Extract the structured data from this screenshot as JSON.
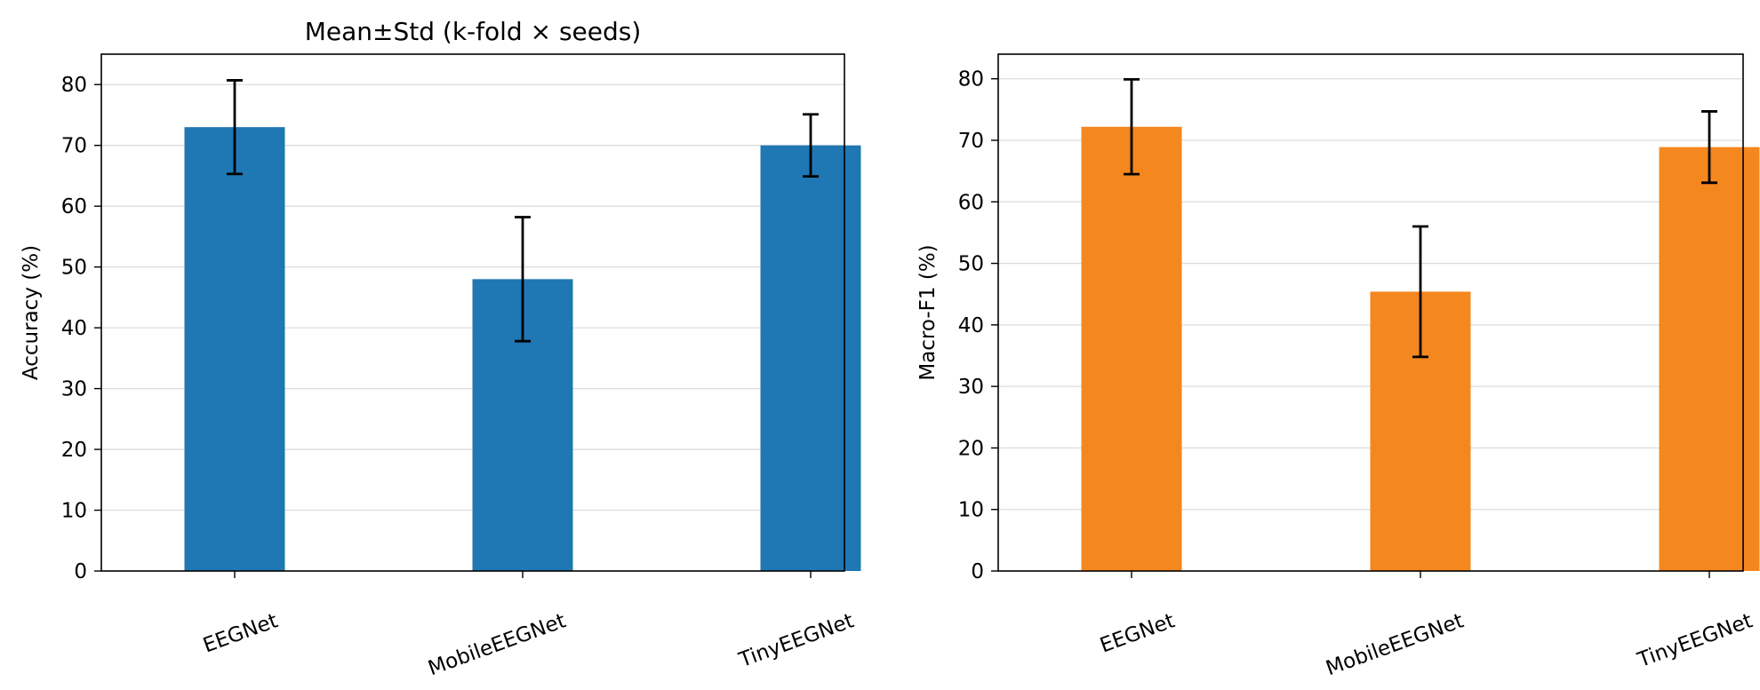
{
  "chart_data": [
    {
      "type": "bar",
      "title": "Mean±Std (k-fold × seeds)",
      "xlabel": "",
      "ylabel": "Accuracy (%)",
      "categories": [
        "EEGNet",
        "MobileEEGNet",
        "TinyEEGNet"
      ],
      "values": [
        73.0,
        48.0,
        70.0
      ],
      "errors": [
        7.7,
        10.2,
        5.1
      ],
      "ylim": [
        0,
        85
      ],
      "yticks": [
        "0",
        "10",
        "20",
        "30",
        "40",
        "50",
        "60",
        "70",
        "80"
      ],
      "grid": "y",
      "color": "#1f77b4"
    },
    {
      "type": "bar",
      "title": "",
      "xlabel": "",
      "ylabel": "Macro-F1 (%)",
      "categories": [
        "EEGNet",
        "MobileEEGNet",
        "TinyEEGNet"
      ],
      "values": [
        72.2,
        45.4,
        68.9
      ],
      "errors": [
        7.7,
        10.6,
        5.8
      ],
      "ylim": [
        0,
        84
      ],
      "yticks": [
        "0",
        "10",
        "20",
        "30",
        "40",
        "50",
        "60",
        "70",
        "80"
      ],
      "grid": "y",
      "color": "#f5871f"
    }
  ]
}
